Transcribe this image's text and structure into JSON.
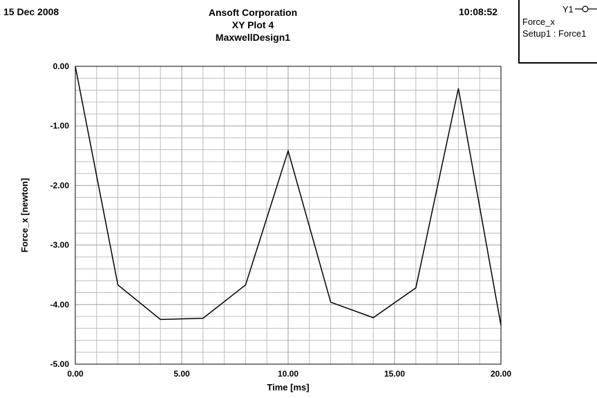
{
  "header": {
    "date": "15 Dec 2008",
    "company": "Ansoft Corporation",
    "plot_name": "XY Plot 4",
    "design": "MaxwellDesign1",
    "time": "10:08:52"
  },
  "legend": {
    "trace": "Y1",
    "expression": "Force_x",
    "solution": "Setup1 : Force1"
  },
  "colors": {
    "line": "#000000",
    "grid": "#bdbdbd",
    "grid_major": "#9e9e9e"
  },
  "chart_data": {
    "type": "line",
    "xlabel": "Time [ms]",
    "ylabel": "Force_x [newton]",
    "xlim": [
      0,
      20
    ],
    "ylim": [
      -5,
      0
    ],
    "xticks": [
      0,
      5,
      10,
      15,
      20
    ],
    "xtick_labels": [
      "0.00",
      "5.00",
      "10.00",
      "15.00",
      "20.00"
    ],
    "yticks": [
      0,
      -1,
      -2,
      -3,
      -4,
      -5
    ],
    "ytick_labels": [
      "0.00",
      "-1.00",
      "-2.00",
      "-3.00",
      "-4.00",
      "-5.00"
    ],
    "grid": true,
    "series": [
      {
        "name": "Y1",
        "x": [
          0,
          2,
          4,
          6,
          8,
          10,
          12,
          14,
          16,
          18,
          20
        ],
        "y": [
          0.0,
          -3.67,
          -4.25,
          -4.23,
          -3.67,
          -1.42,
          -3.96,
          -4.22,
          -3.72,
          -0.37,
          -4.35
        ]
      }
    ]
  }
}
